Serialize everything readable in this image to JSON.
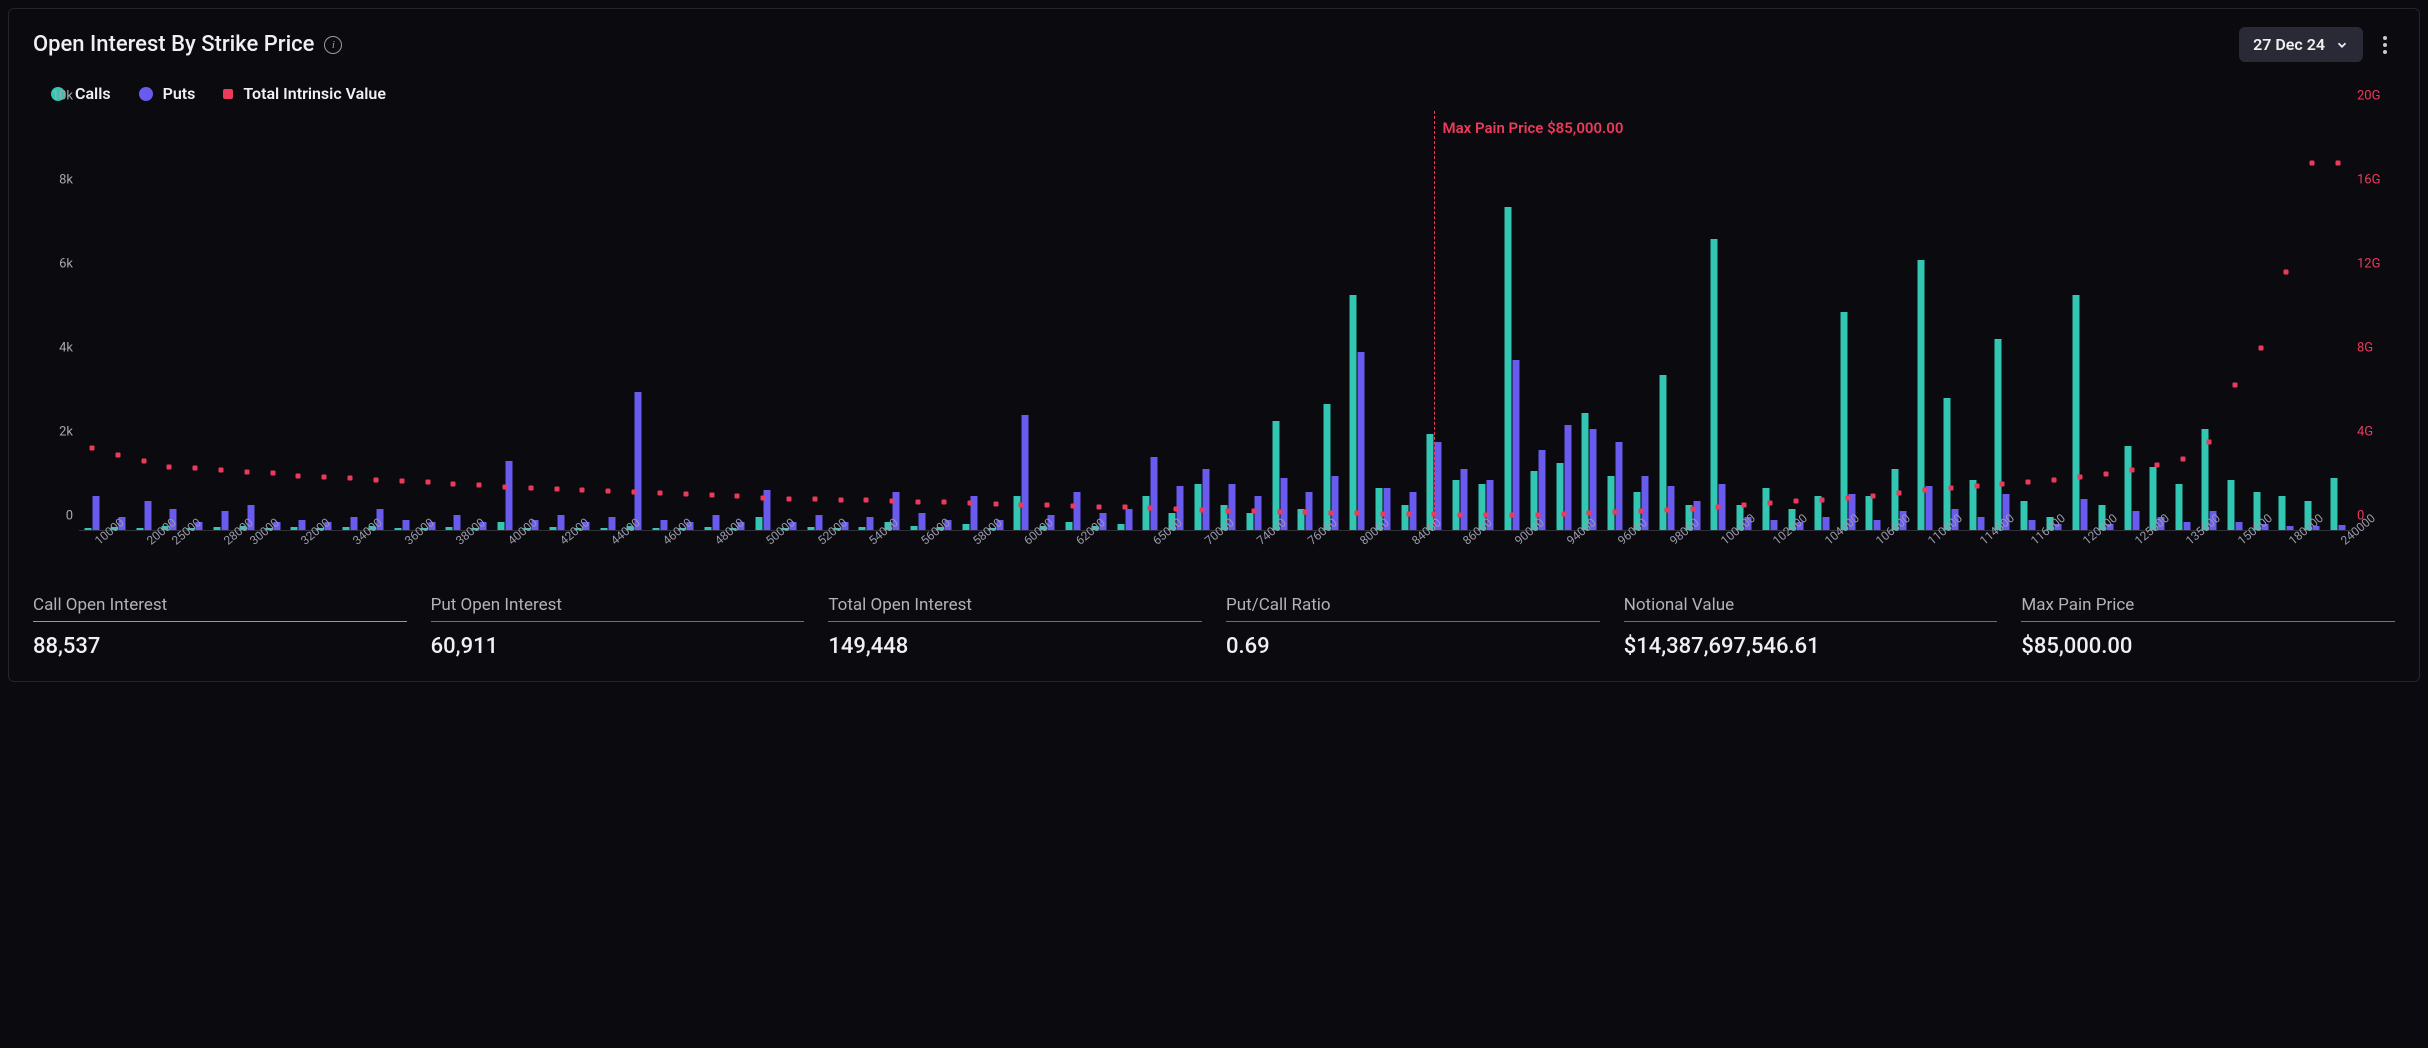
{
  "header": {
    "title": "Open Interest By Strike Price",
    "date_label": "27 Dec 24"
  },
  "colors": {
    "calls": "#33c6b2",
    "puts": "#6a5bef",
    "intrinsic": "#ec3a5b",
    "intrinsic_label": "#ec3a5b",
    "y_right_tick": "#ec3a5b",
    "bg": "#0a0a0f"
  },
  "legend": {
    "calls": "Calls",
    "puts": "Puts",
    "intrinsic": "Total Intrinsic Value"
  },
  "chart": {
    "type": "grouped-bar+scatter",
    "y_left": {
      "min": 0,
      "max": 10000,
      "ticks": [
        "0",
        "2k",
        "4k",
        "6k",
        "8k",
        "10k"
      ],
      "tick_vals": [
        0,
        2000,
        4000,
        6000,
        8000,
        10000
      ]
    },
    "y_right": {
      "min": 0,
      "max": 20,
      "ticks": [
        "0",
        "4G",
        "8G",
        "12G",
        "16G",
        "20G"
      ],
      "tick_vals": [
        0,
        4,
        8,
        12,
        16,
        20
      ]
    },
    "max_pain": {
      "strike": "85000",
      "label": "Max Pain Price $85,000.00"
    },
    "x_categories": [
      "10000",
      "20000",
      "25000",
      "28000",
      "30000",
      "32000",
      "34000",
      "36000",
      "38000",
      "40000",
      "42000",
      "44000",
      "46000",
      "48000",
      "50000",
      "52000",
      "54000",
      "56000",
      "58000",
      "60000",
      "62000",
      "65000",
      "70000",
      "74000",
      "76000",
      "80000",
      "84000",
      "86000",
      "90000",
      "94000",
      "96000",
      "98000",
      "100000",
      "102000",
      "104000",
      "106000",
      "110000",
      "114000",
      "116000",
      "120000",
      "125000",
      "135000",
      "150000",
      "180000",
      "240000"
    ],
    "series": [
      {
        "strike": "10000",
        "calls": 50,
        "puts": 800,
        "intrinsic": 3.9
      },
      {
        "strike": "15000",
        "calls": 80,
        "puts": 300,
        "intrinsic": 3.6
      },
      {
        "strike": "20000",
        "calls": 50,
        "puts": 700,
        "intrinsic": 3.3
      },
      {
        "strike": "25000",
        "calls": 100,
        "puts": 500,
        "intrinsic": 3.0
      },
      {
        "strike": "26000",
        "calls": 60,
        "puts": 200,
        "intrinsic": 2.95
      },
      {
        "strike": "28000",
        "calls": 80,
        "puts": 450,
        "intrinsic": 2.85
      },
      {
        "strike": "30000",
        "calls": 100,
        "puts": 600,
        "intrinsic": 2.75
      },
      {
        "strike": "31000",
        "calls": 60,
        "puts": 200,
        "intrinsic": 2.7
      },
      {
        "strike": "32000",
        "calls": 80,
        "puts": 250,
        "intrinsic": 2.6
      },
      {
        "strike": "33000",
        "calls": 60,
        "puts": 180,
        "intrinsic": 2.55
      },
      {
        "strike": "34000",
        "calls": 70,
        "puts": 300,
        "intrinsic": 2.5
      },
      {
        "strike": "35000",
        "calls": 100,
        "puts": 500,
        "intrinsic": 2.4
      },
      {
        "strike": "36000",
        "calls": 50,
        "puts": 250,
        "intrinsic": 2.35
      },
      {
        "strike": "37000",
        "calls": 60,
        "puts": 200,
        "intrinsic": 2.3
      },
      {
        "strike": "38000",
        "calls": 80,
        "puts": 350,
        "intrinsic": 2.2
      },
      {
        "strike": "39000",
        "calls": 50,
        "puts": 200,
        "intrinsic": 2.15
      },
      {
        "strike": "40000",
        "calls": 200,
        "puts": 1650,
        "intrinsic": 2.05
      },
      {
        "strike": "41000",
        "calls": 60,
        "puts": 250,
        "intrinsic": 2.0
      },
      {
        "strike": "42000",
        "calls": 80,
        "puts": 350,
        "intrinsic": 1.95
      },
      {
        "strike": "43000",
        "calls": 50,
        "puts": 200,
        "intrinsic": 1.9
      },
      {
        "strike": "44000",
        "calls": 60,
        "puts": 300,
        "intrinsic": 1.85
      },
      {
        "strike": "45000",
        "calls": 100,
        "puts": 3300,
        "intrinsic": 1.8
      },
      {
        "strike": "46000",
        "calls": 60,
        "puts": 250,
        "intrinsic": 1.75
      },
      {
        "strike": "47000",
        "calls": 50,
        "puts": 200,
        "intrinsic": 1.7
      },
      {
        "strike": "48000",
        "calls": 80,
        "puts": 350,
        "intrinsic": 1.65
      },
      {
        "strike": "49000",
        "calls": 60,
        "puts": 200,
        "intrinsic": 1.6
      },
      {
        "strike": "50000",
        "calls": 300,
        "puts": 950,
        "intrinsic": 1.55
      },
      {
        "strike": "51000",
        "calls": 50,
        "puts": 200,
        "intrinsic": 1.5
      },
      {
        "strike": "52000",
        "calls": 80,
        "puts": 350,
        "intrinsic": 1.48
      },
      {
        "strike": "53000",
        "calls": 60,
        "puts": 200,
        "intrinsic": 1.45
      },
      {
        "strike": "54000",
        "calls": 80,
        "puts": 300,
        "intrinsic": 1.42
      },
      {
        "strike": "55000",
        "calls": 200,
        "puts": 900,
        "intrinsic": 1.4
      },
      {
        "strike": "56000",
        "calls": 100,
        "puts": 400,
        "intrinsic": 1.35
      },
      {
        "strike": "57000",
        "calls": 80,
        "puts": 250,
        "intrinsic": 1.32
      },
      {
        "strike": "58000",
        "calls": 150,
        "puts": 800,
        "intrinsic": 1.28
      },
      {
        "strike": "59000",
        "calls": 60,
        "puts": 250,
        "intrinsic": 1.25
      },
      {
        "strike": "60000",
        "calls": 800,
        "puts": 2750,
        "intrinsic": 1.2
      },
      {
        "strike": "61000",
        "calls": 100,
        "puts": 350,
        "intrinsic": 1.18
      },
      {
        "strike": "62000",
        "calls": 200,
        "puts": 900,
        "intrinsic": 1.15
      },
      {
        "strike": "63000",
        "calls": 100,
        "puts": 400,
        "intrinsic": 1.12
      },
      {
        "strike": "64000",
        "calls": 150,
        "puts": 500,
        "intrinsic": 1.1
      },
      {
        "strike": "65000",
        "calls": 800,
        "puts": 1750,
        "intrinsic": 1.05
      },
      {
        "strike": "68000",
        "calls": 400,
        "puts": 1050,
        "intrinsic": 1.0
      },
      {
        "strike": "70000",
        "calls": 1100,
        "puts": 1450,
        "intrinsic": 0.95
      },
      {
        "strike": "72000",
        "calls": 600,
        "puts": 1100,
        "intrinsic": 0.92
      },
      {
        "strike": "74000",
        "calls": 400,
        "puts": 800,
        "intrinsic": 0.9
      },
      {
        "strike": "75000",
        "calls": 2600,
        "puts": 1250,
        "intrinsic": 0.88
      },
      {
        "strike": "76000",
        "calls": 500,
        "puts": 900,
        "intrinsic": 0.85
      },
      {
        "strike": "78000",
        "calls": 3000,
        "puts": 1300,
        "intrinsic": 0.82
      },
      {
        "strike": "80000",
        "calls": 5600,
        "puts": 4250,
        "intrinsic": 0.8
      },
      {
        "strike": "82000",
        "calls": 1000,
        "puts": 1000,
        "intrinsic": 0.78
      },
      {
        "strike": "84000",
        "calls": 600,
        "puts": 900,
        "intrinsic": 0.76
      },
      {
        "strike": "85000",
        "calls": 2300,
        "puts": 2100,
        "intrinsic": 0.75
      },
      {
        "strike": "86000",
        "calls": 1200,
        "puts": 1450,
        "intrinsic": 0.74
      },
      {
        "strike": "88000",
        "calls": 1100,
        "puts": 1200,
        "intrinsic": 0.73
      },
      {
        "strike": "90000",
        "calls": 7700,
        "puts": 4050,
        "intrinsic": 0.72
      },
      {
        "strike": "92000",
        "calls": 1400,
        "puts": 1900,
        "intrinsic": 0.74
      },
      {
        "strike": "94000",
        "calls": 1600,
        "puts": 2500,
        "intrinsic": 0.78
      },
      {
        "strike": "95000",
        "calls": 2800,
        "puts": 2400,
        "intrinsic": 0.82
      },
      {
        "strike": "96000",
        "calls": 1300,
        "puts": 2100,
        "intrinsic": 0.86
      },
      {
        "strike": "97000",
        "calls": 900,
        "puts": 1300,
        "intrinsic": 0.9
      },
      {
        "strike": "98000",
        "calls": 3700,
        "puts": 1050,
        "intrinsic": 0.95
      },
      {
        "strike": "99000",
        "calls": 600,
        "puts": 700,
        "intrinsic": 1.0
      },
      {
        "strike": "100000",
        "calls": 6950,
        "puts": 1100,
        "intrinsic": 1.1
      },
      {
        "strike": "101000",
        "calls": 600,
        "puts": 300,
        "intrinsic": 1.2
      },
      {
        "strike": "102000",
        "calls": 1000,
        "puts": 250,
        "intrinsic": 1.3
      },
      {
        "strike": "103000",
        "calls": 500,
        "puts": 200,
        "intrinsic": 1.38
      },
      {
        "strike": "104000",
        "calls": 800,
        "puts": 300,
        "intrinsic": 1.45
      },
      {
        "strike": "105000",
        "calls": 5200,
        "puts": 850,
        "intrinsic": 1.55
      },
      {
        "strike": "106000",
        "calls": 800,
        "puts": 250,
        "intrinsic": 1.62
      },
      {
        "strike": "108000",
        "calls": 1450,
        "puts": 450,
        "intrinsic": 1.75
      },
      {
        "strike": "110000",
        "calls": 6450,
        "puts": 1050,
        "intrinsic": 1.9
      },
      {
        "strike": "112000",
        "calls": 3150,
        "puts": 500,
        "intrinsic": 2.0
      },
      {
        "strike": "114000",
        "calls": 1200,
        "puts": 300,
        "intrinsic": 2.1
      },
      {
        "strike": "115000",
        "calls": 4550,
        "puts": 850,
        "intrinsic": 2.2
      },
      {
        "strike": "116000",
        "calls": 700,
        "puts": 250,
        "intrinsic": 2.3
      },
      {
        "strike": "118000",
        "calls": 300,
        "puts": 150,
        "intrinsic": 2.4
      },
      {
        "strike": "120000",
        "calls": 5600,
        "puts": 750,
        "intrinsic": 2.55
      },
      {
        "strike": "122000",
        "calls": 600,
        "puts": 150,
        "intrinsic": 2.65
      },
      {
        "strike": "125000",
        "calls": 2000,
        "puts": 450,
        "intrinsic": 2.85
      },
      {
        "strike": "130000",
        "calls": 1500,
        "puts": 300,
        "intrinsic": 3.1
      },
      {
        "strike": "135000",
        "calls": 1100,
        "puts": 200,
        "intrinsic": 3.4
      },
      {
        "strike": "140000",
        "calls": 2400,
        "puts": 450,
        "intrinsic": 4.2
      },
      {
        "strike": "150000",
        "calls": 1200,
        "puts": 200,
        "intrinsic": 6.9
      },
      {
        "strike": "160000",
        "calls": 900,
        "puts": 150,
        "intrinsic": 8.7
      },
      {
        "strike": "180000",
        "calls": 800,
        "puts": 100,
        "intrinsic": 12.3
      },
      {
        "strike": "200000",
        "calls": 700,
        "puts": 100,
        "intrinsic": 17.5
      },
      {
        "strike": "240000",
        "calls": 1250,
        "puts": 120,
        "intrinsic": 17.5
      }
    ]
  },
  "stats": [
    {
      "label": "Call Open Interest",
      "value": "88,537",
      "color": "#33c6b2"
    },
    {
      "label": "Put Open Interest",
      "value": "60,911",
      "color": "#6a5bef"
    },
    {
      "label": "Total Open Interest",
      "value": "149,448",
      "color": "#6a5bef"
    },
    {
      "label": "Put/Call Ratio",
      "value": "0.69",
      "color": "#6d6d78"
    },
    {
      "label": "Notional Value",
      "value": "$14,387,697,546.61",
      "color": "#6d6d78"
    },
    {
      "label": "Max Pain Price",
      "value": "$85,000.00",
      "color": "#ec3a5b"
    }
  ]
}
